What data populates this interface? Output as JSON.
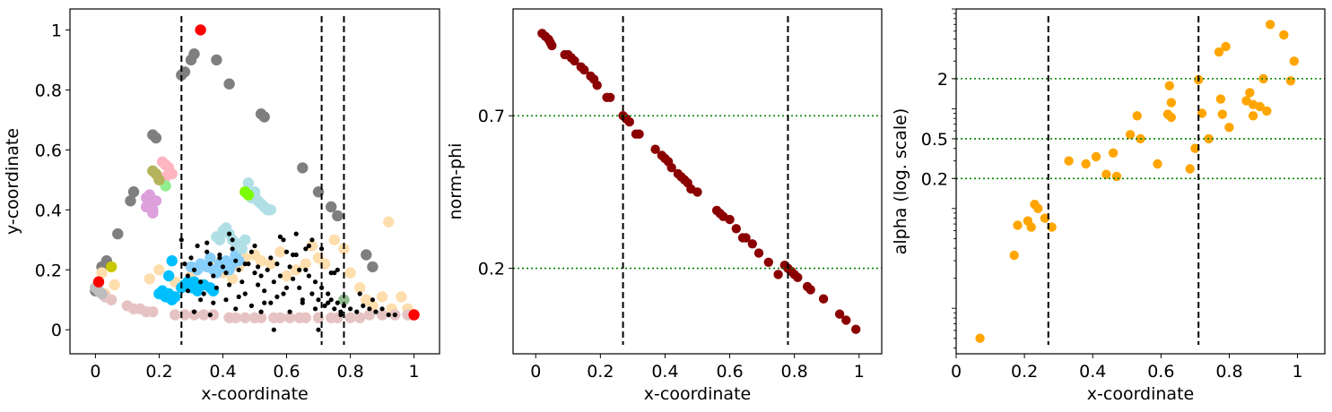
{
  "chart_data": [
    {
      "type": "scatter",
      "xlabel": "x-coordinate",
      "ylabel": "y-coordinate",
      "xlim": [
        -0.08,
        1.08
      ],
      "ylim": [
        -0.08,
        1.07
      ],
      "xticks": [
        0,
        0.2,
        0.4,
        0.6,
        0.8,
        1
      ],
      "xtick_labels": [
        "0",
        "0.2",
        "0.4",
        "0.6",
        "0.8",
        "1"
      ],
      "yticks": [
        0,
        0.2,
        0.4,
        0.6,
        0.8,
        1
      ],
      "ytick_labels": [
        "0",
        "0.2",
        "0.4",
        "0.6",
        "0.8",
        "1"
      ],
      "vlines": [
        0.27,
        0.71,
        0.78
      ],
      "grid": false,
      "legend": "none",
      "series": [
        {
          "color": "#7f7f7f",
          "x": [
            0.0,
            0.02,
            0.035,
            0.07,
            0.11,
            0.12,
            0.18,
            0.19,
            0.27,
            0.28,
            0.3,
            0.31,
            0.38,
            0.42,
            0.52,
            0.53,
            0.65,
            0.7,
            0.74,
            0.76,
            0.85,
            0.87
          ],
          "y": [
            0.13,
            0.21,
            0.23,
            0.32,
            0.43,
            0.46,
            0.65,
            0.64,
            0.85,
            0.86,
            0.9,
            0.92,
            0.9,
            0.82,
            0.72,
            0.71,
            0.54,
            0.46,
            0.41,
            0.38,
            0.25,
            0.21
          ]
        },
        {
          "color": "#ffdead",
          "x": [
            0.02,
            0.03,
            0.06,
            0.17,
            0.2,
            0.25,
            0.3,
            0.34,
            0.38,
            0.4,
            0.43,
            0.45,
            0.47,
            0.5,
            0.52,
            0.55,
            0.58,
            0.6,
            0.63,
            0.66,
            0.68,
            0.7,
            0.72,
            0.75,
            0.78,
            0.8,
            0.83,
            0.85,
            0.87,
            0.9,
            0.92,
            0.93,
            0.96,
            0.98,
            0.99
          ],
          "y": [
            0.19,
            0.12,
            0.15,
            0.17,
            0.2,
            0.16,
            0.18,
            0.15,
            0.22,
            0.19,
            0.17,
            0.21,
            0.24,
            0.25,
            0.23,
            0.22,
            0.26,
            0.18,
            0.2,
            0.22,
            0.28,
            0.24,
            0.22,
            0.3,
            0.27,
            0.19,
            0.14,
            0.1,
            0.08,
            0.11,
            0.36,
            0.07,
            0.11,
            0.07,
            0.05
          ]
        },
        {
          "color": "#e6c3c3",
          "x": [
            0.03,
            0.05,
            0.1,
            0.12,
            0.14,
            0.16,
            0.18,
            0.25,
            0.28,
            0.31,
            0.34,
            0.37,
            0.42,
            0.44,
            0.47,
            0.5,
            0.52,
            0.56,
            0.58,
            0.61,
            0.64,
            0.66,
            0.7,
            0.74,
            0.76,
            0.8,
            0.83,
            0.86,
            0.9,
            0.94,
            0.98
          ],
          "y": [
            0.11,
            0.1,
            0.08,
            0.07,
            0.07,
            0.06,
            0.06,
            0.05,
            0.05,
            0.05,
            0.05,
            0.05,
            0.04,
            0.04,
            0.04,
            0.04,
            0.04,
            0.04,
            0.04,
            0.04,
            0.04,
            0.04,
            0.04,
            0.04,
            0.04,
            0.04,
            0.04,
            0.05,
            0.05,
            0.05,
            0.05
          ]
        },
        {
          "color": "#00bfff",
          "x": [
            0.2,
            0.21,
            0.22,
            0.23,
            0.24,
            0.25,
            0.27,
            0.28,
            0.29,
            0.3,
            0.31,
            0.32,
            0.34,
            0.36,
            0.37,
            0.24,
            0.23
          ],
          "y": [
            0.12,
            0.13,
            0.11,
            0.12,
            0.1,
            0.11,
            0.14,
            0.15,
            0.16,
            0.14,
            0.16,
            0.13,
            0.15,
            0.14,
            0.13,
            0.23,
            0.18
          ]
        },
        {
          "color": "#87cefa",
          "x": [
            0.3,
            0.32,
            0.33,
            0.35,
            0.36,
            0.37,
            0.38,
            0.39,
            0.4,
            0.41,
            0.42,
            0.43,
            0.44,
            0.45
          ],
          "y": [
            0.21,
            0.2,
            0.22,
            0.21,
            0.24,
            0.2,
            0.19,
            0.22,
            0.21,
            0.23,
            0.2,
            0.22,
            0.25,
            0.23
          ]
        },
        {
          "color": "#b0e0e6",
          "x": [
            0.38,
            0.39,
            0.4,
            0.41,
            0.42,
            0.43,
            0.44,
            0.45,
            0.46,
            0.47,
            0.48,
            0.5,
            0.51,
            0.52,
            0.53,
            0.54,
            0.55,
            0.5,
            0.49
          ],
          "y": [
            0.31,
            0.3,
            0.33,
            0.34,
            0.32,
            0.3,
            0.29,
            0.28,
            0.27,
            0.3,
            0.49,
            0.45,
            0.43,
            0.42,
            0.41,
            0.4,
            0.4,
            0.46,
            0.44
          ]
        },
        {
          "color": "#7cfc00",
          "x": [
            0.47,
            0.48
          ],
          "y": [
            0.46,
            0.45
          ]
        },
        {
          "color": "#ffb6c1",
          "x": [
            0.21,
            0.22,
            0.23,
            0.24,
            0.22
          ],
          "y": [
            0.56,
            0.55,
            0.54,
            0.52,
            0.51
          ]
        },
        {
          "color": "#90ee90",
          "x": [
            0.22
          ],
          "y": [
            0.48
          ]
        },
        {
          "color": "#b5b35c",
          "x": [
            0.18,
            0.19,
            0.2
          ],
          "y": [
            0.53,
            0.52,
            0.5
          ]
        },
        {
          "color": "#dda0dd",
          "x": [
            0.16,
            0.17,
            0.18,
            0.19,
            0.17,
            0.18,
            0.16
          ],
          "y": [
            0.41,
            0.42,
            0.4,
            0.43,
            0.45,
            0.39,
            0.44
          ]
        },
        {
          "color": "#c8c800",
          "x": [
            0.05
          ],
          "y": [
            0.21
          ]
        },
        {
          "color": "#bdbdbd",
          "x": [
            0.0,
            0.01,
            0.02
          ],
          "y": [
            0.14,
            0.13,
            0.12
          ]
        },
        {
          "color": "#8fbc8f",
          "x": [
            0.78
          ],
          "y": [
            0.1
          ]
        },
        {
          "color": "#ff0000",
          "x": [
            0.33,
            0.01,
            1.0
          ],
          "y": [
            1.0,
            0.16,
            0.05
          ]
        },
        {
          "color": "#000000",
          "x": [
            0.27,
            0.28,
            0.29,
            0.3,
            0.31,
            0.32,
            0.33,
            0.34,
            0.35,
            0.36,
            0.37,
            0.38,
            0.39,
            0.4,
            0.41,
            0.42,
            0.43,
            0.44,
            0.45,
            0.46,
            0.47,
            0.48,
            0.49,
            0.5,
            0.51,
            0.52,
            0.53,
            0.54,
            0.55,
            0.56,
            0.57,
            0.58,
            0.59,
            0.6,
            0.61,
            0.62,
            0.63,
            0.64,
            0.65,
            0.66,
            0.67,
            0.68,
            0.69,
            0.7,
            0.71,
            0.72,
            0.73,
            0.74,
            0.75,
            0.76,
            0.77,
            0.78,
            0.8,
            0.82,
            0.84,
            0.86,
            0.88,
            0.9,
            0.92,
            0.94,
            0.29,
            0.33,
            0.37,
            0.41,
            0.45,
            0.49,
            0.53,
            0.57,
            0.61,
            0.65,
            0.69,
            0.73,
            0.77,
            0.31,
            0.35,
            0.39,
            0.43,
            0.47,
            0.51,
            0.55,
            0.59,
            0.63,
            0.67,
            0.71,
            0.75,
            0.36,
            0.44,
            0.52,
            0.6,
            0.68,
            0.76,
            0.42,
            0.5,
            0.58,
            0.66,
            0.74,
            0.56,
            0.62,
            0.64,
            0.7,
            0.83,
            0.87
          ],
          "y": [
            0.3,
            0.22,
            0.18,
            0.24,
            0.2,
            0.28,
            0.16,
            0.12,
            0.26,
            0.22,
            0.18,
            0.14,
            0.25,
            0.21,
            0.19,
            0.15,
            0.27,
            0.23,
            0.2,
            0.16,
            0.12,
            0.22,
            0.26,
            0.19,
            0.15,
            0.18,
            0.13,
            0.2,
            0.24,
            0.16,
            0.22,
            0.18,
            0.12,
            0.26,
            0.21,
            0.17,
            0.25,
            0.14,
            0.09,
            0.2,
            0.18,
            0.12,
            0.16,
            0.1,
            0.14,
            0.08,
            0.12,
            0.1,
            0.07,
            0.09,
            0.06,
            0.08,
            0.07,
            0.06,
            0.08,
            0.07,
            0.06,
            0.07,
            0.05,
            0.05,
            0.13,
            0.1,
            0.09,
            0.1,
            0.11,
            0.08,
            0.09,
            0.11,
            0.06,
            0.1,
            0.07,
            0.09,
            0.05,
            0.06,
            0.29,
            0.24,
            0.3,
            0.22,
            0.21,
            0.09,
            0.3,
            0.32,
            0.28,
            0.27,
            0.19,
            0.05,
            0.07,
            0.06,
            0.14,
            0.3,
            0.2,
            0.32,
            0.28,
            0.31,
            0.27,
            0.19,
            0.0,
            0.25,
            0.2,
            0.0,
            0.12,
            0.1
          ]
        }
      ]
    },
    {
      "type": "scatter",
      "xlabel": "x-coordinate",
      "ylabel": "norm-phi",
      "xlim": [
        -0.07,
        1.07
      ],
      "ylim": [
        -0.08,
        1.05
      ],
      "xticks": [
        0,
        0.2,
        0.4,
        0.6,
        0.8,
        1
      ],
      "xtick_labels": [
        "0",
        "0.2",
        "0.4",
        "0.6",
        "0.8",
        "1"
      ],
      "yticks": [
        0.2,
        0.7
      ],
      "ytick_labels": [
        "0.2",
        "0.7"
      ],
      "vlines": [
        0.27,
        0.78
      ],
      "hlines": [
        0.2,
        0.7
      ],
      "grid": false,
      "legend": "none",
      "series": [
        {
          "color": "#8b0000",
          "x": [
            0.02,
            0.03,
            0.04,
            0.045,
            0.05,
            0.09,
            0.1,
            0.11,
            0.12,
            0.14,
            0.15,
            0.17,
            0.18,
            0.19,
            0.22,
            0.23,
            0.27,
            0.28,
            0.29,
            0.31,
            0.32,
            0.37,
            0.39,
            0.4,
            0.41,
            0.42,
            0.44,
            0.45,
            0.46,
            0.47,
            0.48,
            0.5,
            0.56,
            0.57,
            0.58,
            0.6,
            0.62,
            0.64,
            0.65,
            0.67,
            0.69,
            0.72,
            0.75,
            0.77,
            0.78,
            0.79,
            0.8,
            0.81,
            0.84,
            0.85,
            0.89,
            0.94,
            0.96,
            0.99
          ],
          "y": [
            0.97,
            0.96,
            0.95,
            0.94,
            0.93,
            0.9,
            0.9,
            0.89,
            0.88,
            0.86,
            0.85,
            0.83,
            0.82,
            0.8,
            0.76,
            0.76,
            0.7,
            0.69,
            0.68,
            0.64,
            0.64,
            0.59,
            0.57,
            0.56,
            0.55,
            0.53,
            0.51,
            0.5,
            0.49,
            0.48,
            0.46,
            0.45,
            0.39,
            0.38,
            0.37,
            0.36,
            0.33,
            0.3,
            0.3,
            0.28,
            0.25,
            0.22,
            0.18,
            0.21,
            0.2,
            0.19,
            0.18,
            0.17,
            0.14,
            0.13,
            0.1,
            0.05,
            0.03,
            0.0
          ]
        }
      ]
    },
    {
      "type": "scatter",
      "xlabel": "x-coordinate",
      "ylabel": "alpha (log. scale)",
      "yscale": "log",
      "xlim": [
        0,
        1.08
      ],
      "ylim": [
        0.0035,
        10
      ],
      "xticks": [
        0,
        0.2,
        0.4,
        0.6,
        0.8,
        1
      ],
      "xtick_labels": [
        "0",
        "0.2",
        "0.4",
        "0.6",
        "0.8",
        "1"
      ],
      "yticks": [
        0.2,
        0.5,
        2
      ],
      "ytick_labels": [
        "0.2",
        "0.5",
        "2"
      ],
      "vlines": [
        0.27,
        0.71
      ],
      "hlines": [
        0.2,
        0.5,
        2
      ],
      "grid": false,
      "legend": "none",
      "series": [
        {
          "color": "#ffa500",
          "x": [
            0.07,
            0.17,
            0.18,
            0.21,
            0.22,
            0.23,
            0.24,
            0.26,
            0.28,
            0.33,
            0.38,
            0.41,
            0.44,
            0.46,
            0.47,
            0.51,
            0.53,
            0.54,
            0.59,
            0.62,
            0.625,
            0.63,
            0.63,
            0.685,
            0.7,
            0.71,
            0.72,
            0.74,
            0.77,
            0.775,
            0.78,
            0.79,
            0.8,
            0.85,
            0.86,
            0.87,
            0.87,
            0.89,
            0.9,
            0.91,
            0.92,
            0.96,
            0.98,
            0.99
          ],
          "y": [
            0.005,
            0.034,
            0.068,
            0.075,
            0.065,
            0.11,
            0.1,
            0.08,
            0.065,
            0.3,
            0.28,
            0.33,
            0.22,
            0.36,
            0.21,
            0.55,
            0.85,
            0.5,
            0.28,
            0.88,
            1.7,
            0.82,
            1.15,
            0.25,
            0.4,
            1.95,
            0.9,
            0.5,
            3.7,
            1.25,
            0.88,
            4.2,
            0.65,
            1.2,
            1.45,
            1.1,
            0.85,
            1.05,
            2.0,
            0.95,
            7.0,
            5.5,
            1.9,
            3.0
          ]
        }
      ]
    }
  ]
}
